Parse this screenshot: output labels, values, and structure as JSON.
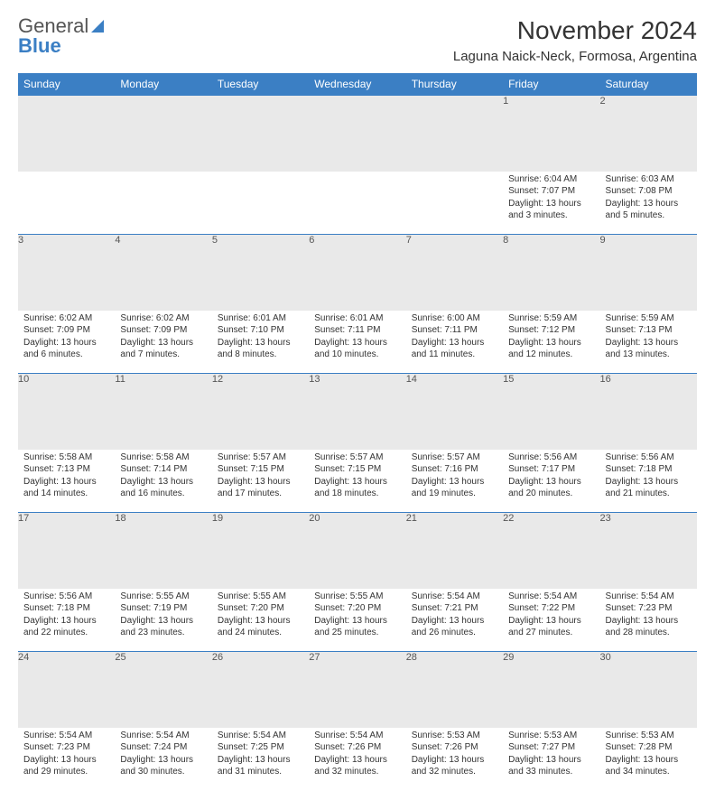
{
  "brand": {
    "name_gray": "General",
    "name_blue": "Blue"
  },
  "header": {
    "month_title": "November 2024",
    "location": "Laguna Naick-Neck, Formosa, Argentina"
  },
  "styling": {
    "accent_color": "#3b7fc4",
    "header_bg": "#3b7fc4",
    "header_text": "#ffffff",
    "daynum_bg": "#e9e9e9",
    "body_text": "#333333",
    "cell_border": "#3b7fc4",
    "page_bg": "#ffffff",
    "font_family": "Arial",
    "title_fontsize_pt": 21,
    "location_fontsize_pt": 11,
    "dayheader_fontsize_pt": 9,
    "cell_fontsize_pt": 7.5
  },
  "day_headers": [
    "Sunday",
    "Monday",
    "Tuesday",
    "Wednesday",
    "Thursday",
    "Friday",
    "Saturday"
  ],
  "labels": {
    "sunrise": "Sunrise:",
    "sunset": "Sunset:",
    "daylight": "Daylight:"
  },
  "weeks": [
    [
      null,
      null,
      null,
      null,
      null,
      {
        "n": "1",
        "sr": "6:04 AM",
        "ss": "7:07 PM",
        "dl": "13 hours and 3 minutes."
      },
      {
        "n": "2",
        "sr": "6:03 AM",
        "ss": "7:08 PM",
        "dl": "13 hours and 5 minutes."
      }
    ],
    [
      {
        "n": "3",
        "sr": "6:02 AM",
        "ss": "7:09 PM",
        "dl": "13 hours and 6 minutes."
      },
      {
        "n": "4",
        "sr": "6:02 AM",
        "ss": "7:09 PM",
        "dl": "13 hours and 7 minutes."
      },
      {
        "n": "5",
        "sr": "6:01 AM",
        "ss": "7:10 PM",
        "dl": "13 hours and 8 minutes."
      },
      {
        "n": "6",
        "sr": "6:01 AM",
        "ss": "7:11 PM",
        "dl": "13 hours and 10 minutes."
      },
      {
        "n": "7",
        "sr": "6:00 AM",
        "ss": "7:11 PM",
        "dl": "13 hours and 11 minutes."
      },
      {
        "n": "8",
        "sr": "5:59 AM",
        "ss": "7:12 PM",
        "dl": "13 hours and 12 minutes."
      },
      {
        "n": "9",
        "sr": "5:59 AM",
        "ss": "7:13 PM",
        "dl": "13 hours and 13 minutes."
      }
    ],
    [
      {
        "n": "10",
        "sr": "5:58 AM",
        "ss": "7:13 PM",
        "dl": "13 hours and 14 minutes."
      },
      {
        "n": "11",
        "sr": "5:58 AM",
        "ss": "7:14 PM",
        "dl": "13 hours and 16 minutes."
      },
      {
        "n": "12",
        "sr": "5:57 AM",
        "ss": "7:15 PM",
        "dl": "13 hours and 17 minutes."
      },
      {
        "n": "13",
        "sr": "5:57 AM",
        "ss": "7:15 PM",
        "dl": "13 hours and 18 minutes."
      },
      {
        "n": "14",
        "sr": "5:57 AM",
        "ss": "7:16 PM",
        "dl": "13 hours and 19 minutes."
      },
      {
        "n": "15",
        "sr": "5:56 AM",
        "ss": "7:17 PM",
        "dl": "13 hours and 20 minutes."
      },
      {
        "n": "16",
        "sr": "5:56 AM",
        "ss": "7:18 PM",
        "dl": "13 hours and 21 minutes."
      }
    ],
    [
      {
        "n": "17",
        "sr": "5:56 AM",
        "ss": "7:18 PM",
        "dl": "13 hours and 22 minutes."
      },
      {
        "n": "18",
        "sr": "5:55 AM",
        "ss": "7:19 PM",
        "dl": "13 hours and 23 minutes."
      },
      {
        "n": "19",
        "sr": "5:55 AM",
        "ss": "7:20 PM",
        "dl": "13 hours and 24 minutes."
      },
      {
        "n": "20",
        "sr": "5:55 AM",
        "ss": "7:20 PM",
        "dl": "13 hours and 25 minutes."
      },
      {
        "n": "21",
        "sr": "5:54 AM",
        "ss": "7:21 PM",
        "dl": "13 hours and 26 minutes."
      },
      {
        "n": "22",
        "sr": "5:54 AM",
        "ss": "7:22 PM",
        "dl": "13 hours and 27 minutes."
      },
      {
        "n": "23",
        "sr": "5:54 AM",
        "ss": "7:23 PM",
        "dl": "13 hours and 28 minutes."
      }
    ],
    [
      {
        "n": "24",
        "sr": "5:54 AM",
        "ss": "7:23 PM",
        "dl": "13 hours and 29 minutes."
      },
      {
        "n": "25",
        "sr": "5:54 AM",
        "ss": "7:24 PM",
        "dl": "13 hours and 30 minutes."
      },
      {
        "n": "26",
        "sr": "5:54 AM",
        "ss": "7:25 PM",
        "dl": "13 hours and 31 minutes."
      },
      {
        "n": "27",
        "sr": "5:54 AM",
        "ss": "7:26 PM",
        "dl": "13 hours and 32 minutes."
      },
      {
        "n": "28",
        "sr": "5:53 AM",
        "ss": "7:26 PM",
        "dl": "13 hours and 32 minutes."
      },
      {
        "n": "29",
        "sr": "5:53 AM",
        "ss": "7:27 PM",
        "dl": "13 hours and 33 minutes."
      },
      {
        "n": "30",
        "sr": "5:53 AM",
        "ss": "7:28 PM",
        "dl": "13 hours and 34 minutes."
      }
    ]
  ]
}
